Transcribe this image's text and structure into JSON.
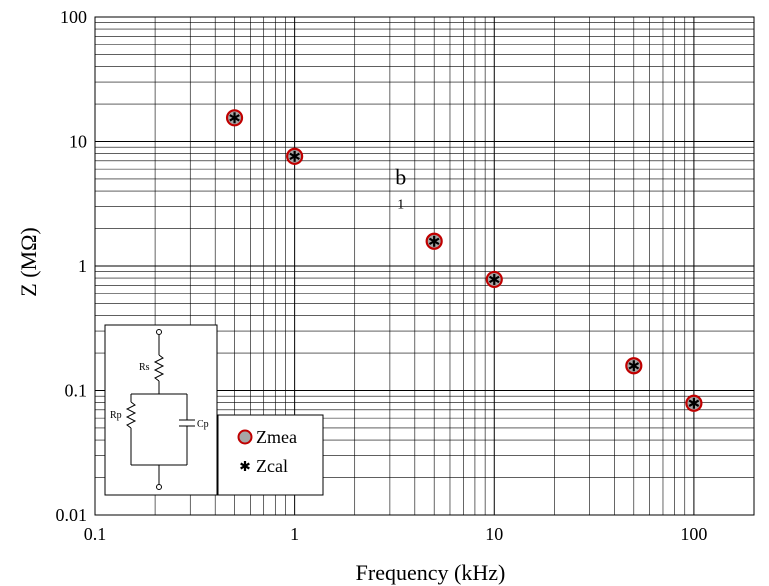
{
  "chart_data": {
    "type": "scatter",
    "title": "",
    "xlabel": "Frequency (kHz)",
    "ylabel": "Z (MΩ)",
    "xscale": "log",
    "yscale": "log",
    "xlim": [
      0.1,
      200
    ],
    "ylim": [
      0.01,
      100
    ],
    "x_ticks": [
      0.1,
      1,
      10,
      100
    ],
    "x_tick_labels": [
      "0.1",
      "1",
      "10",
      "100"
    ],
    "y_ticks": [
      0.01,
      0.1,
      1,
      10,
      100
    ],
    "y_tick_labels": [
      "0.01",
      "0.1",
      "1",
      "10",
      "100"
    ],
    "grid": true,
    "series": [
      {
        "name": "Zmea",
        "marker": "circle",
        "color": "#a6a6a6",
        "edge_color": "#c00000",
        "x": [
          0.5,
          1,
          5,
          10,
          50,
          100
        ],
        "y": [
          15.5,
          7.6,
          1.58,
          0.78,
          0.158,
          0.079
        ]
      },
      {
        "name": "Zcal",
        "marker": "asterisk",
        "color": "#000000",
        "x": [
          0.5,
          1,
          5,
          10,
          50,
          100
        ],
        "y": [
          15.5,
          7.6,
          1.58,
          0.78,
          0.158,
          0.079
        ]
      }
    ],
    "annotations": [
      {
        "text": "b",
        "x": 3.4,
        "y": 4.5
      },
      {
        "text": "1",
        "x": 3.4,
        "y": 2.9
      }
    ],
    "legend_placement": "bottom-left",
    "inset": {
      "type": "circuit",
      "labels": {
        "rs": "Rs",
        "rp": "Rp",
        "cp": "Cp"
      }
    }
  }
}
